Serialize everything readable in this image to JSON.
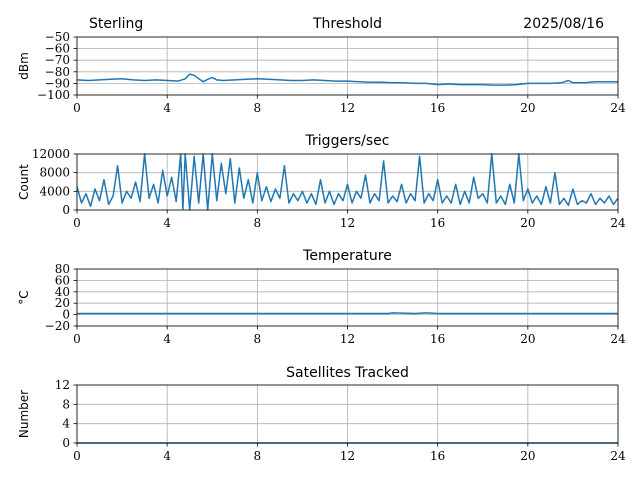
{
  "header": {
    "left": "Sterling",
    "right": "2025/08/16"
  },
  "colors": {
    "series": "#1f77b4",
    "grid": "#b0b0b0",
    "axes": "#000000"
  },
  "chart_data": [
    {
      "type": "line",
      "title": "Threshold",
      "xlabel": "",
      "ylabel": "dBm",
      "xlim": [
        0,
        24
      ],
      "ylim": [
        -100,
        -50
      ],
      "xticks": [
        0,
        4,
        8,
        12,
        16,
        20,
        24
      ],
      "yticks": [
        -100,
        -90,
        -80,
        -70,
        -60,
        -50
      ],
      "yticklabels": [
        "−100",
        "−90",
        "−80",
        "−70",
        "−60",
        "−50"
      ],
      "grid": true,
      "series": [
        {
          "color": "#1f77b4",
          "x": [
            0,
            0.5,
            1,
            1.5,
            2,
            2.5,
            3,
            3.5,
            4,
            4.5,
            4.8,
            5.0,
            5.2,
            5.4,
            5.6,
            5.8,
            6.0,
            6.2,
            6.5,
            7,
            7.5,
            8,
            8.5,
            9,
            9.5,
            10,
            10.5,
            11,
            11.5,
            12,
            12.5,
            13,
            13.5,
            14,
            14.5,
            15,
            15.5,
            16,
            16.5,
            17,
            17.5,
            18,
            18.5,
            19,
            19.5,
            20,
            20.5,
            21,
            21.5,
            21.8,
            22,
            22.5,
            23,
            23.5,
            24
          ],
          "y": [
            -87,
            -87.5,
            -87,
            -86.5,
            -86,
            -87,
            -87.5,
            -87,
            -87.5,
            -88,
            -86,
            -82,
            -83,
            -86,
            -88.5,
            -86.5,
            -85,
            -87,
            -87.5,
            -87,
            -86.5,
            -86,
            -86.5,
            -87,
            -87.5,
            -87.5,
            -87,
            -87.5,
            -88,
            -88,
            -88.5,
            -89,
            -89,
            -89.5,
            -89.5,
            -90,
            -90,
            -91,
            -90.5,
            -91,
            -91,
            -91,
            -91.5,
            -91.5,
            -91,
            -90,
            -90,
            -90,
            -89.5,
            -87.5,
            -89.5,
            -89.5,
            -88.5,
            -88.5,
            -88.5
          ]
        }
      ]
    },
    {
      "type": "line",
      "title": "Triggers/sec",
      "xlabel": "",
      "ylabel": "Count",
      "xlim": [
        0,
        24
      ],
      "ylim": [
        0,
        12000
      ],
      "xticks": [
        0,
        4,
        8,
        12,
        16,
        20,
        24
      ],
      "yticks": [
        0,
        4000,
        8000,
        12000
      ],
      "yticklabels": [
        "0",
        "4000",
        "8000",
        "12000"
      ],
      "grid": true,
      "series": [
        {
          "color": "#1f77b4",
          "x": [
            0,
            0.2,
            0.4,
            0.6,
            0.8,
            1.0,
            1.2,
            1.4,
            1.6,
            1.8,
            2.0,
            2.2,
            2.4,
            2.6,
            2.8,
            3.0,
            3.2,
            3.4,
            3.6,
            3.8,
            4.0,
            4.2,
            4.4,
            4.6,
            4.7,
            4.8,
            5.0,
            5.2,
            5.4,
            5.6,
            5.8,
            6.0,
            6.2,
            6.4,
            6.6,
            6.8,
            7.0,
            7.2,
            7.4,
            7.6,
            7.8,
            8.0,
            8.2,
            8.4,
            8.6,
            8.8,
            9.0,
            9.2,
            9.4,
            9.6,
            9.8,
            10.0,
            10.2,
            10.4,
            10.6,
            10.8,
            11.0,
            11.2,
            11.4,
            11.6,
            11.8,
            12.0,
            12.2,
            12.4,
            12.6,
            12.8,
            13.0,
            13.2,
            13.4,
            13.6,
            13.8,
            14.0,
            14.2,
            14.4,
            14.6,
            14.8,
            15.0,
            15.2,
            15.4,
            15.6,
            15.8,
            16.0,
            16.2,
            16.4,
            16.6,
            16.8,
            17.0,
            17.2,
            17.4,
            17.6,
            17.8,
            18.0,
            18.2,
            18.4,
            18.6,
            18.8,
            19.0,
            19.2,
            19.4,
            19.6,
            19.8,
            20.0,
            20.2,
            20.4,
            20.6,
            20.8,
            21.0,
            21.2,
            21.4,
            21.6,
            21.8,
            22.0,
            22.2,
            22.4,
            22.6,
            22.8,
            23.0,
            23.2,
            23.4,
            23.6,
            23.8,
            24.0
          ],
          "y": [
            5000,
            1500,
            3500,
            800,
            4500,
            2000,
            6500,
            1200,
            3000,
            9500,
            1500,
            4000,
            2500,
            6000,
            1800,
            12000,
            2500,
            5500,
            1500,
            8500,
            3000,
            7000,
            1800,
            12000,
            200,
            12000,
            0,
            11500,
            1500,
            12000,
            0,
            12000,
            2000,
            10000,
            3500,
            11000,
            1500,
            9000,
            2500,
            6500,
            1500,
            8000,
            2000,
            5000,
            1800,
            4500,
            2500,
            9500,
            1500,
            3500,
            2000,
            4000,
            1500,
            3500,
            1200,
            6500,
            1500,
            4000,
            1200,
            3500,
            2000,
            5500,
            1500,
            4000,
            2500,
            7500,
            1500,
            3500,
            2000,
            10500,
            1500,
            3000,
            1800,
            5500,
            1500,
            3500,
            2000,
            11500,
            1500,
            3500,
            2000,
            6500,
            1500,
            3000,
            1500,
            5500,
            1200,
            4000,
            1500,
            7000,
            2500,
            3500,
            1500,
            12000,
            1500,
            3000,
            1200,
            5500,
            1500,
            12000,
            2000,
            4500,
            1500,
            3000,
            1200,
            5000,
            1500,
            8000,
            1200,
            2500,
            1000,
            4500,
            1200,
            2000,
            1500,
            3500,
            1200,
            2500,
            1500,
            3000,
            1200,
            2500
          ]
        }
      ]
    },
    {
      "type": "line",
      "title": "Temperature",
      "xlabel": "",
      "ylabel": "°C",
      "xlim": [
        0,
        24
      ],
      "ylim": [
        -20,
        80
      ],
      "xticks": [
        0,
        4,
        8,
        12,
        16,
        20,
        24
      ],
      "yticks": [
        -20,
        0,
        20,
        40,
        60,
        80
      ],
      "yticklabels": [
        "−20",
        "0",
        "20",
        "40",
        "60",
        "80"
      ],
      "grid": true,
      "series": [
        {
          "color": "#1f77b4",
          "x": [
            0,
            2,
            4,
            6,
            8,
            10,
            12,
            13.8,
            14,
            15,
            15.5,
            16,
            16.2,
            18,
            20,
            22,
            24
          ],
          "y": [
            2,
            2,
            2,
            2,
            2,
            2,
            2,
            2,
            3,
            2,
            3,
            2,
            2,
            2,
            2,
            2,
            2
          ]
        }
      ]
    },
    {
      "type": "line",
      "title": "Satellites Tracked",
      "xlabel": "",
      "ylabel": "Number",
      "xlim": [
        0,
        24
      ],
      "ylim": [
        0,
        12
      ],
      "xticks": [
        0,
        4,
        8,
        12,
        16,
        20,
        24
      ],
      "yticks": [
        0,
        4,
        8,
        12
      ],
      "yticklabels": [
        "0",
        "4",
        "8",
        "12"
      ],
      "grid": true,
      "series": [
        {
          "color": "#1f77b4",
          "x": [
            0,
            24
          ],
          "y": [
            0,
            0
          ]
        }
      ]
    }
  ]
}
